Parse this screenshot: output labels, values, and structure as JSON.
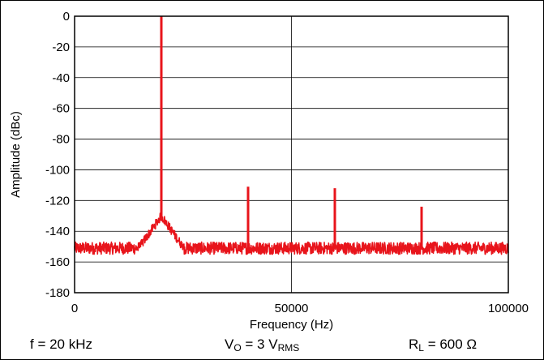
{
  "chart_data": {
    "type": "line",
    "xlabel": "Frequency (Hz)",
    "ylabel": "Amplitude (dBc)",
    "xlim": [
      0,
      100000
    ],
    "ylim": [
      -180,
      0
    ],
    "xticks": [
      0,
      50000,
      100000
    ],
    "yticks": [
      0,
      -20,
      -40,
      -60,
      -80,
      -100,
      -120,
      -140,
      -160,
      -180
    ],
    "grid": true,
    "series": [
      {
        "color": "#e8141b",
        "noise_floor_dbc": -151,
        "peaks": [
          {
            "x": 20000,
            "y": 0
          },
          {
            "x": 40000,
            "y": -111
          },
          {
            "x": 60000,
            "y": -112
          },
          {
            "x": 80000,
            "y": -124
          }
        ]
      }
    ]
  },
  "conditions": {
    "freq": "f = 20 kHz",
    "vo_main": "V",
    "vo_sub": "O",
    "vo_mid": " = 3 V",
    "vo_sub2": "RMS",
    "rl_main": "R",
    "rl_sub": "L",
    "rl_rest": " = 600 Ω"
  }
}
